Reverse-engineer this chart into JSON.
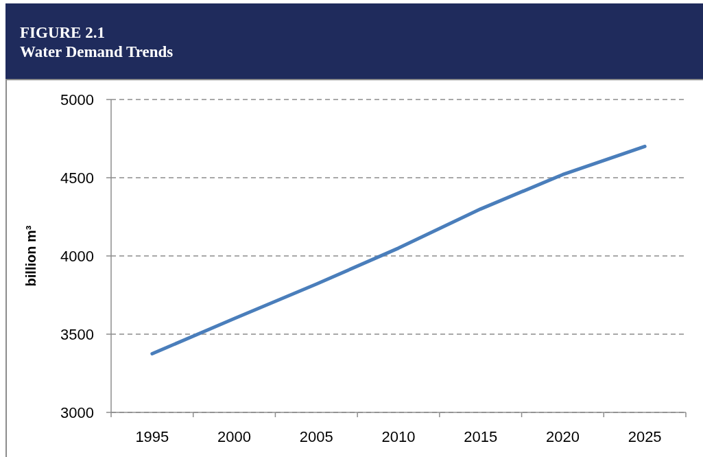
{
  "chart_data": {
    "type": "line",
    "title": "FIGURE 2.1",
    "subtitle": "Water Demand Trends",
    "ylabel": "billion m³",
    "categories": [
      "1995",
      "2000",
      "2005",
      "2010",
      "2015",
      "2020",
      "2025"
    ],
    "series": [
      {
        "color": "#4a7ebb",
        "values": [
          3375,
          3600,
          3820,
          4050,
          4300,
          4520,
          4700
        ]
      }
    ],
    "ylim": [
      3000,
      5000
    ],
    "yticks": [
      3000,
      3500,
      4000,
      4500,
      5000
    ],
    "grid": "y",
    "marker": "none",
    "line_style": "solid"
  }
}
